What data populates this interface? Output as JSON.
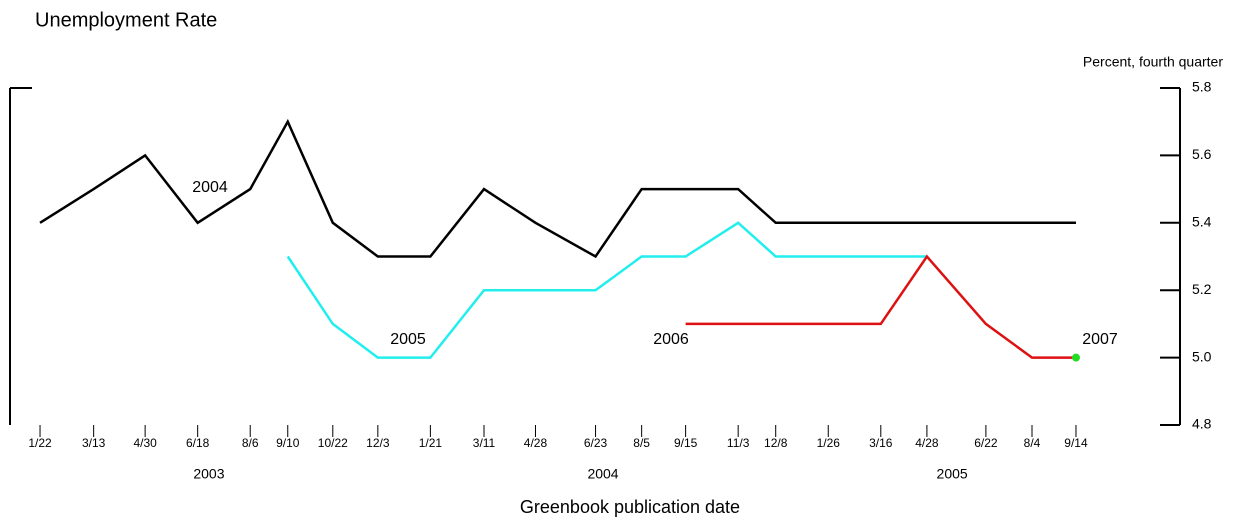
{
  "chart_data": {
    "type": "line",
    "title": "Unemployment Rate",
    "y_label": "Percent, fourth quarter",
    "x_label": "Greenbook publication date",
    "x": [
      "2003-01-22",
      "2003-03-13",
      "2003-04-30",
      "2003-06-18",
      "2003-08-06",
      "2003-09-10",
      "2003-10-22",
      "2003-12-03",
      "2004-01-21",
      "2004-03-11",
      "2004-04-28",
      "2004-06-23",
      "2004-08-05",
      "2004-09-15",
      "2004-11-03",
      "2004-12-08",
      "2005-01-26",
      "2005-03-16",
      "2005-04-28",
      "2005-06-22",
      "2005-08-04",
      "2005-09-14"
    ],
    "xlim": [
      "2002-12-25",
      "2005-12-20"
    ],
    "xticks": [
      {
        "value": "2003-01-22",
        "label": "1/22"
      },
      {
        "value": "2003-03-13",
        "label": "3/13"
      },
      {
        "value": "2003-04-30",
        "label": "4/30"
      },
      {
        "value": "2003-06-18",
        "label": "6/18"
      },
      {
        "value": "2003-08-06",
        "label": "8/6"
      },
      {
        "value": "2003-09-10",
        "label": "9/10"
      },
      {
        "value": "2003-10-22",
        "label": "10/22"
      },
      {
        "value": "2003-12-03",
        "label": "12/3"
      },
      {
        "value": "2004-01-21",
        "label": "1/21"
      },
      {
        "value": "2004-03-11",
        "label": "3/11"
      },
      {
        "value": "2004-04-28",
        "label": "4/28"
      },
      {
        "value": "2004-06-23",
        "label": "6/23"
      },
      {
        "value": "2004-08-05",
        "label": "8/5"
      },
      {
        "value": "2004-09-15",
        "label": "9/15"
      },
      {
        "value": "2004-11-03",
        "label": "11/3"
      },
      {
        "value": "2004-12-08",
        "label": "12/8"
      },
      {
        "value": "2005-01-26",
        "label": "1/26"
      },
      {
        "value": "2005-03-16",
        "label": "3/16"
      },
      {
        "value": "2005-04-28",
        "label": "4/28"
      },
      {
        "value": "2005-06-22",
        "label": "6/22"
      },
      {
        "value": "2005-08-04",
        "label": "8/4"
      },
      {
        "value": "2005-09-14",
        "label": "9/14"
      }
    ],
    "xgroups": [
      "2003",
      "2004",
      "2005"
    ],
    "ylim": [
      4.8,
      5.8
    ],
    "yticks": [
      5.8,
      5.6,
      5.4,
      5.2,
      {
        "value": 5,
        "label": "5.0"
      },
      4.8
    ],
    "series": [
      {
        "name": "2004",
        "color": "#000000",
        "values": [
          5.4,
          5.5,
          5.6,
          5.4,
          5.5,
          5.7,
          5.4,
          5.3,
          5.3,
          5.5,
          5.4,
          5.3,
          5.5,
          5.5,
          5.5,
          5.4,
          5.4,
          5.4,
          5.4,
          5.4,
          5.4,
          5.4
        ]
      },
      {
        "name": "2005",
        "color": "#22eeee",
        "values": [
          null,
          null,
          null,
          null,
          null,
          5.3,
          5.1,
          5.0,
          5.0,
          5.2,
          5.2,
          5.2,
          5.3,
          5.3,
          5.4,
          5.3,
          5.3,
          5.3,
          5.3,
          null,
          null,
          null
        ]
      },
      {
        "name": "2006",
        "color": "#dd1111",
        "values": [
          null,
          null,
          null,
          null,
          null,
          null,
          null,
          null,
          null,
          null,
          null,
          null,
          null,
          5.1,
          5.1,
          5.1,
          5.1,
          5.1,
          5.3,
          5.1,
          5.0,
          5.0
        ]
      },
      {
        "name": "2007",
        "color": "#22dd22",
        "values": [
          null,
          null,
          null,
          null,
          null,
          null,
          null,
          null,
          null,
          null,
          null,
          null,
          null,
          null,
          null,
          null,
          null,
          null,
          null,
          null,
          null,
          5.0
        ]
      }
    ]
  }
}
